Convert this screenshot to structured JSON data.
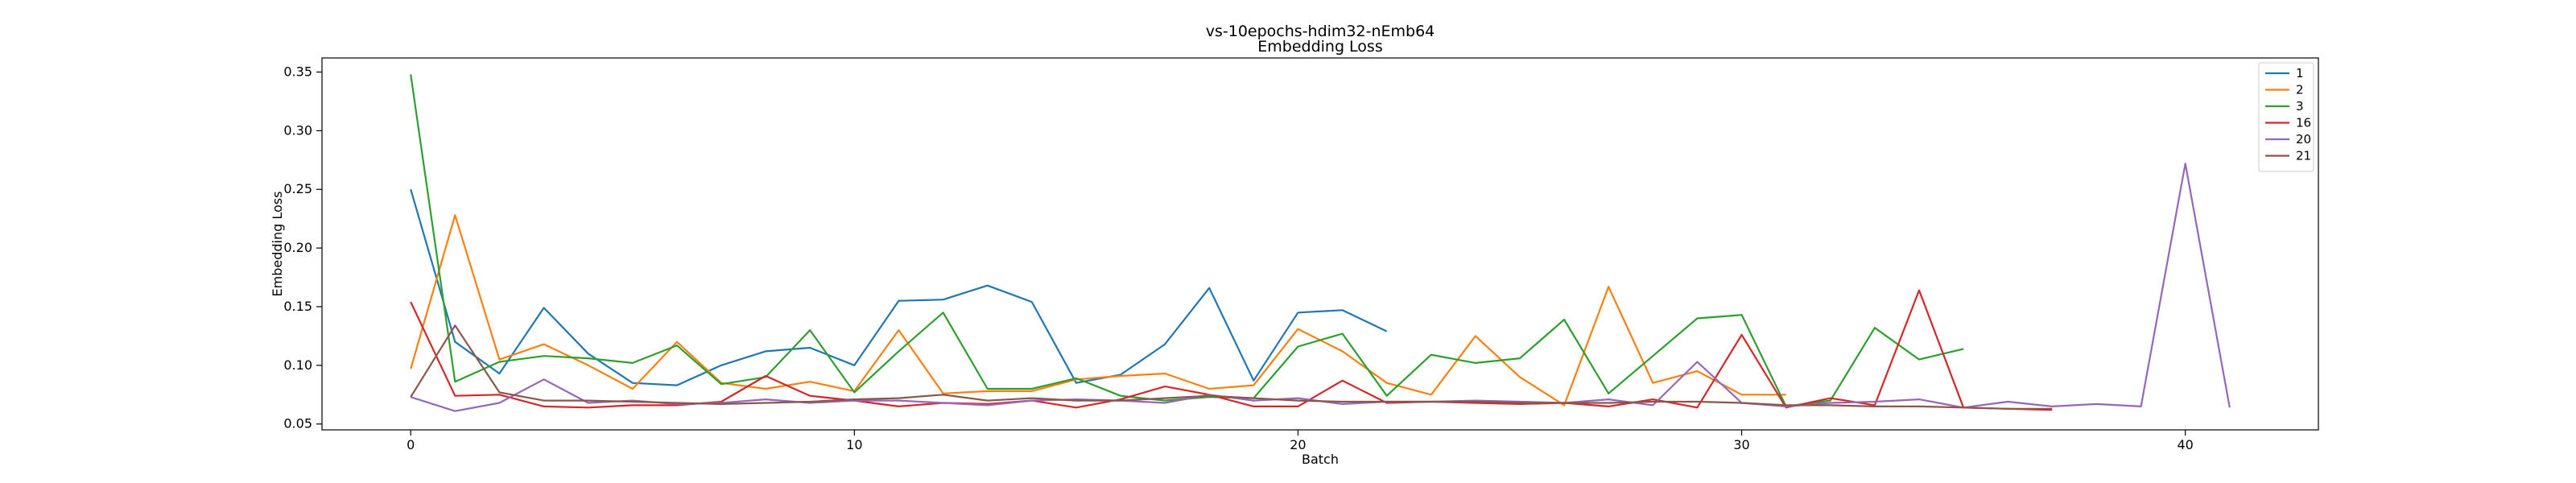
{
  "chart_data": {
    "type": "line",
    "title": "vs-10epochs-hdim32-nEmb64",
    "subtitle": "Embedding Loss",
    "xlabel": "Batch",
    "ylabel": "Embedding Loss",
    "xlim": [
      -2,
      43
    ],
    "ylim": [
      0.045,
      0.362
    ],
    "xticks": [
      0,
      10,
      20,
      30,
      40
    ],
    "yticks": [
      0.05,
      0.1,
      0.15,
      0.2,
      0.25,
      0.3,
      0.35
    ],
    "ytick_labels": [
      "0.05",
      "0.10",
      "0.15",
      "0.20",
      "0.25",
      "0.30",
      "0.35"
    ],
    "grid": false,
    "legend_position": "top-right",
    "series": [
      {
        "name": "1",
        "color": "#1f77b4",
        "x": [
          0,
          1,
          2,
          3,
          4,
          5,
          6,
          7,
          8,
          9,
          10,
          11,
          12,
          13,
          14,
          15,
          16,
          17,
          18,
          19,
          20,
          21,
          22
        ],
        "values": [
          0.25,
          0.12,
          0.093,
          0.149,
          0.11,
          0.085,
          0.083,
          0.1,
          0.112,
          0.115,
          0.1,
          0.155,
          0.156,
          0.168,
          0.154,
          0.085,
          0.092,
          0.118,
          0.166,
          0.087,
          0.145,
          0.147,
          0.129
        ]
      },
      {
        "name": "2",
        "color": "#ff7f0e",
        "x": [
          0,
          1,
          2,
          3,
          4,
          5,
          6,
          7,
          8,
          9,
          10,
          11,
          12,
          13,
          14,
          15,
          16,
          17,
          18,
          19,
          20,
          21,
          22,
          23,
          24,
          25,
          26,
          27,
          28,
          29,
          30,
          31
        ],
        "values": [
          0.097,
          0.228,
          0.105,
          0.118,
          0.1,
          0.08,
          0.12,
          0.085,
          0.08,
          0.086,
          0.078,
          0.13,
          0.076,
          0.078,
          0.078,
          0.088,
          0.091,
          0.093,
          0.08,
          0.083,
          0.131,
          0.112,
          0.085,
          0.075,
          0.125,
          0.09,
          0.066,
          0.167,
          0.085,
          0.095,
          0.075,
          0.075
        ]
      },
      {
        "name": "3",
        "color": "#2ca02c",
        "x": [
          0,
          1,
          2,
          3,
          4,
          5,
          6,
          7,
          8,
          9,
          10,
          11,
          12,
          13,
          14,
          15,
          16,
          17,
          18,
          19,
          20,
          21,
          22,
          23,
          24,
          25,
          26,
          27,
          28,
          29,
          30,
          31,
          32,
          33,
          34,
          35
        ],
        "values": [
          0.348,
          0.086,
          0.103,
          0.108,
          0.106,
          0.102,
          0.117,
          0.084,
          0.09,
          0.13,
          0.077,
          0.112,
          0.145,
          0.08,
          0.08,
          0.089,
          0.074,
          0.07,
          0.073,
          0.072,
          0.116,
          0.127,
          0.074,
          0.109,
          0.102,
          0.106,
          0.139,
          0.076,
          0.108,
          0.14,
          0.143,
          0.065,
          0.07,
          0.132,
          0.105,
          0.114
        ]
      },
      {
        "name": "16",
        "color": "#d62728",
        "x": [
          0,
          1,
          2,
          3,
          4,
          5,
          6,
          7,
          8,
          9,
          10,
          11,
          12,
          13,
          14,
          15,
          16,
          17,
          18,
          19,
          20,
          21,
          22,
          23,
          24,
          25,
          26,
          27,
          28,
          29,
          30,
          31,
          32,
          33,
          34,
          35,
          36,
          37
        ],
        "values": [
          0.154,
          0.074,
          0.075,
          0.065,
          0.064,
          0.066,
          0.066,
          0.069,
          0.091,
          0.074,
          0.07,
          0.065,
          0.068,
          0.067,
          0.07,
          0.064,
          0.071,
          0.082,
          0.075,
          0.065,
          0.065,
          0.087,
          0.068,
          0.069,
          0.068,
          0.067,
          0.068,
          0.065,
          0.071,
          0.064,
          0.126,
          0.064,
          0.072,
          0.066,
          0.164,
          0.064,
          0.063,
          0.062
        ]
      },
      {
        "name": "20",
        "color": "#9467bd",
        "x": [
          0,
          1,
          2,
          3,
          4,
          5,
          6,
          7,
          8,
          9,
          10,
          11,
          12,
          13,
          14,
          15,
          16,
          17,
          18,
          19,
          20,
          21,
          22,
          23,
          24,
          25,
          26,
          27,
          28,
          29,
          30,
          31,
          32,
          33,
          34,
          35,
          36,
          37,
          38,
          39,
          40,
          41
        ],
        "values": [
          0.073,
          0.061,
          0.068,
          0.088,
          0.068,
          0.07,
          0.067,
          0.068,
          0.071,
          0.068,
          0.07,
          0.07,
          0.068,
          0.066,
          0.07,
          0.071,
          0.07,
          0.068,
          0.075,
          0.07,
          0.072,
          0.067,
          0.069,
          0.069,
          0.07,
          0.069,
          0.068,
          0.071,
          0.066,
          0.103,
          0.068,
          0.065,
          0.068,
          0.069,
          0.071,
          0.064,
          0.069,
          0.065,
          0.067,
          0.065,
          0.272,
          0.064
        ]
      },
      {
        "name": "21",
        "color": "#8c564b",
        "x": [
          0,
          1,
          2,
          3,
          4,
          5,
          6,
          7,
          8,
          9,
          10,
          11,
          12,
          13,
          14,
          15,
          16,
          17,
          18,
          19,
          20,
          21,
          22,
          23,
          24,
          25,
          26,
          27,
          28,
          29,
          30,
          31,
          32,
          33,
          34,
          35,
          36,
          37
        ],
        "values": [
          0.073,
          0.134,
          0.077,
          0.07,
          0.07,
          0.069,
          0.068,
          0.067,
          0.068,
          0.069,
          0.071,
          0.072,
          0.075,
          0.07,
          0.072,
          0.07,
          0.07,
          0.072,
          0.074,
          0.072,
          0.07,
          0.069,
          0.069,
          0.069,
          0.069,
          0.068,
          0.068,
          0.068,
          0.069,
          0.069,
          0.068,
          0.066,
          0.066,
          0.065,
          0.065,
          0.064,
          0.063,
          0.063
        ]
      }
    ]
  }
}
